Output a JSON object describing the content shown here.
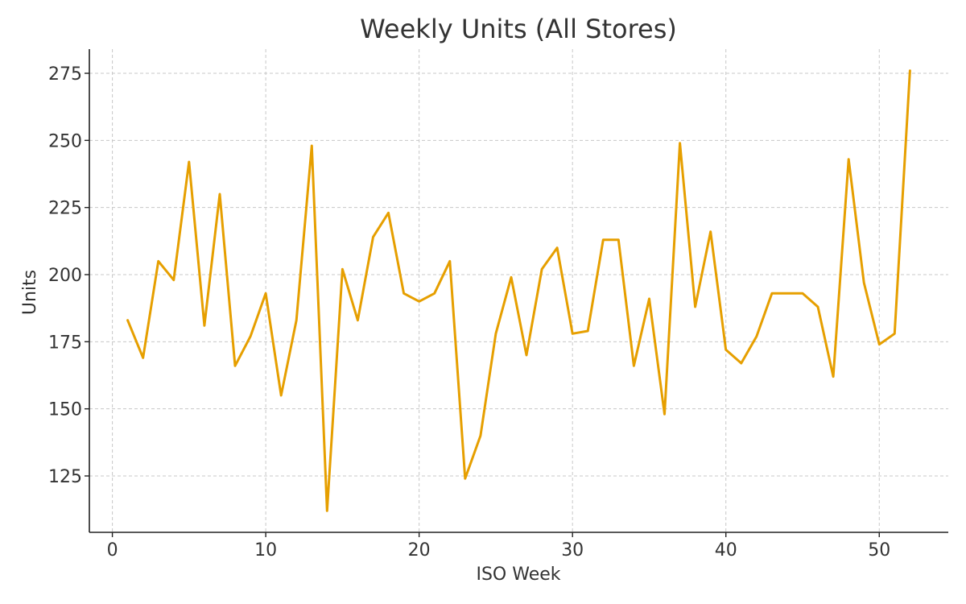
{
  "chart_data": {
    "type": "line",
    "title": "Weekly Units (All Stores)",
    "xlabel": "ISO Week",
    "ylabel": "Units",
    "xlim": [
      -1.5,
      54.5
    ],
    "ylim": [
      104,
      284
    ],
    "xticks": [
      0,
      10,
      20,
      30,
      40,
      50
    ],
    "yticks": [
      125,
      150,
      175,
      200,
      225,
      250,
      275
    ],
    "grid": true,
    "series": [
      {
        "color": "#E69F00",
        "x": [
          1,
          2,
          3,
          4,
          5,
          6,
          7,
          8,
          9,
          10,
          11,
          12,
          13,
          14,
          15,
          16,
          17,
          18,
          19,
          20,
          21,
          22,
          23,
          24,
          25,
          26,
          27,
          28,
          29,
          30,
          31,
          32,
          33,
          34,
          35,
          36,
          37,
          38,
          39,
          40,
          41,
          42,
          43,
          44,
          45,
          46,
          47,
          48,
          49,
          50,
          51,
          52
        ],
        "y": [
          183,
          169,
          205,
          198,
          242,
          181,
          230,
          166,
          177,
          193,
          155,
          183,
          248,
          112,
          202,
          183,
          214,
          223,
          193,
          190,
          193,
          205,
          124,
          140,
          178,
          199,
          170,
          202,
          210,
          178,
          179,
          213,
          213,
          166,
          191,
          148,
          249,
          188,
          216,
          172,
          167,
          177,
          193,
          193,
          193,
          188,
          162,
          243,
          197,
          174,
          178,
          276
        ]
      }
    ]
  }
}
